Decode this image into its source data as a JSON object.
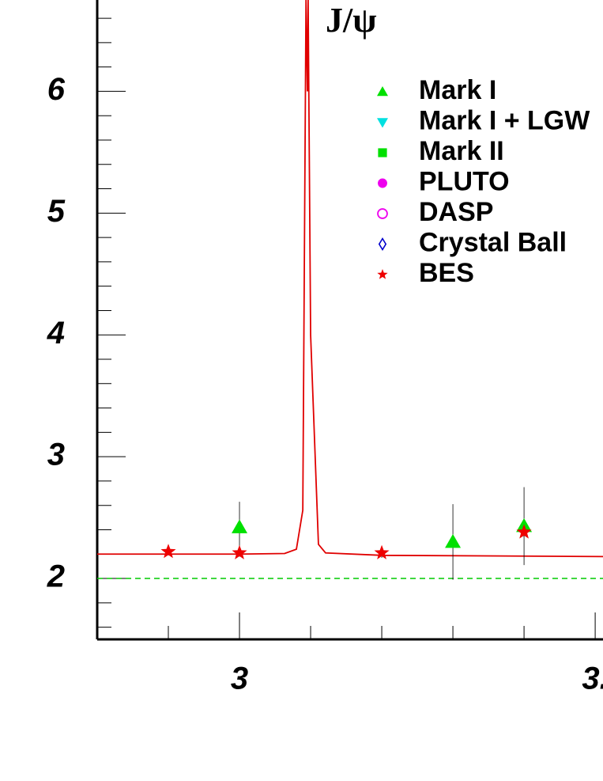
{
  "chart_data": {
    "type": "line",
    "annotation": "J/ψ",
    "xlim": [
      2.96,
      3.1022
    ],
    "ylim": [
      1.5,
      6.75
    ],
    "xticks": [
      3,
      {
        "value": 3.1,
        "label": "3."
      }
    ],
    "yticks": [
      2,
      3,
      4,
      5,
      6
    ],
    "xminorticks": [
      2.98,
      3.02,
      3.04,
      3.06,
      3.08
    ],
    "yminorticks": [
      1.6,
      1.8,
      2.2,
      2.4,
      2.6,
      2.8,
      3.2,
      3.4,
      3.6,
      3.8,
      4.2,
      4.4,
      4.6,
      4.8,
      5.2,
      5.4,
      5.6,
      5.8,
      6.2,
      6.4,
      6.6
    ],
    "reference_line": {
      "value": 2,
      "color": "#00cc00"
    },
    "curve": {
      "color": "#e00000",
      "x": [
        2.96,
        3.0,
        3.0127,
        3.016,
        3.0178,
        3.0187,
        3.0191,
        3.0193,
        3.02,
        3.0222,
        3.0242,
        3.04,
        3.1022
      ],
      "values": [
        2.2,
        2.2,
        2.205,
        2.24,
        2.56,
        6.75,
        6.0,
        6.75,
        4.0,
        2.28,
        2.21,
        2.19,
        2.18
      ]
    },
    "legend": "upper right",
    "series": [
      {
        "name": "Mark I",
        "color": "#00e000",
        "marker": "triangle-up",
        "x": [
          3.0,
          3.06,
          3.08
        ],
        "values": [
          2.42,
          2.3,
          2.43
        ],
        "errors": [
          0.21,
          0.31,
          0.32
        ]
      },
      {
        "name": "Mark I + LGW",
        "color": "#00e0e0",
        "marker": "triangle-down",
        "x": [],
        "values": [],
        "errors": []
      },
      {
        "name": "Mark II",
        "color": "#00e000",
        "marker": "square",
        "x": [],
        "values": [],
        "errors": []
      },
      {
        "name": "PLUTO",
        "color": "#ee00ee",
        "marker": "circle",
        "x": [],
        "values": [],
        "errors": []
      },
      {
        "name": "DASP",
        "color": "#ee00ee",
        "marker": "open-circle",
        "x": [],
        "values": [],
        "errors": []
      },
      {
        "name": "Crystal Ball",
        "color": "#0000cc",
        "marker": "open-diamond",
        "x": [],
        "values": [],
        "errors": []
      },
      {
        "name": "BES",
        "color": "#ee0000",
        "marker": "star",
        "x": [
          2.98,
          3.0,
          3.04,
          3.08
        ],
        "values": [
          2.22,
          2.21,
          2.21,
          2.38
        ],
        "errors": [
          0.03,
          0.03,
          0.04,
          0.04
        ]
      }
    ]
  }
}
